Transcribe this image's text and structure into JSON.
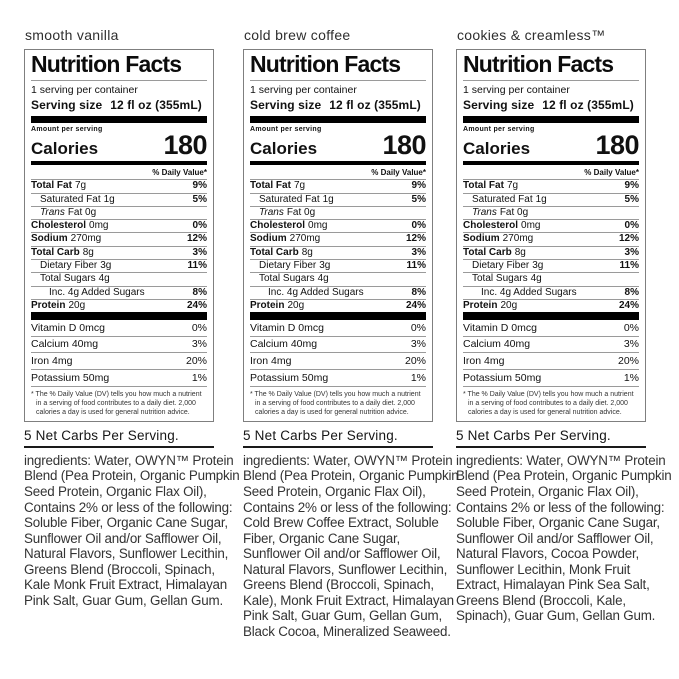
{
  "shared_label": {
    "title": "Nutrition Facts",
    "servings_per_container": "1 serving per container",
    "serving_size_label": "Serving size",
    "serving_size_value": "12 fl oz (355mL)",
    "amount_per_serving": "Amount per serving",
    "calories_label": "Calories",
    "calories_value": "180",
    "daily_value_header": "% Daily Value*",
    "rows": [
      {
        "name": "Total Fat",
        "amount": "7g",
        "dv": "9%",
        "bold": true,
        "indent": 0
      },
      {
        "name": "Saturated Fat",
        "amount": "1g",
        "dv": "5%",
        "bold": false,
        "indent": 1
      },
      {
        "name": "Trans",
        "amount": "Fat 0g",
        "dv": "",
        "bold": false,
        "italic": true,
        "indent": 1
      },
      {
        "name": "Cholesterol",
        "amount": "0mg",
        "dv": "0%",
        "bold": true,
        "indent": 0
      },
      {
        "name": "Sodium",
        "amount": "270mg",
        "dv": "12%",
        "bold": true,
        "indent": 0
      },
      {
        "name": "Total Carb",
        "amount": "8g",
        "dv": "3%",
        "bold": true,
        "indent": 0
      },
      {
        "name": "Dietary Fiber",
        "amount": "3g",
        "dv": "11%",
        "bold": false,
        "indent": 1
      },
      {
        "name": "Total Sugars",
        "amount": "4g",
        "dv": "",
        "bold": false,
        "indent": 1
      },
      {
        "name": "",
        "amount": "Inc. 4g Added Sugars",
        "dv": "8%",
        "bold": false,
        "indent": 2
      },
      {
        "name": "Protein",
        "amount": "20g",
        "dv": "24%",
        "bold": true,
        "indent": 0
      }
    ],
    "vitamins": [
      {
        "label": "Vitamin D 0mcg",
        "dv": "0%"
      },
      {
        "label": "Calcium 40mg",
        "dv": "3%"
      },
      {
        "label": "Iron 4mg",
        "dv": "20%"
      },
      {
        "label": "Potassium 50mg",
        "dv": "1%"
      }
    ],
    "footnote": "* The % Daily Value (DV) tells you how much a nutrient in a serving of food contributes to a daily diet. 2,000 calories a day is used for general nutrition advice.",
    "net_carbs_note": "5 Net Carbs Per Serving."
  },
  "flavors": [
    {
      "name": "smooth vanilla",
      "ingredients": "ingredients: Water, OWYN™ Protein Blend (Pea Protein, Organic Pumpkin Seed Protein, Organic Flax Oil), Contains 2% or less of the following: Soluble Fiber, Organic Cane Sugar, Sunflower Oil and/or Safflower Oil, Natural Flavors, Sunflower Lecithin, Greens Blend (Broccoli, Spinach, Kale Monk Fruit Extract, Himalayan Pink Salt, Guar Gum, Gellan Gum."
    },
    {
      "name": "cold brew coffee",
      "ingredients": "ingredients: Water, OWYN™ Protein Blend (Pea Protein, Organic Pumpkin Seed Protein, Organic Flax Oil), Contains 2% or less of the following: Cold Brew Coffee Extract, Soluble Fiber, Organic Cane Sugar, Sunflower Oil and/or Safflower Oil, Natural Flavors, Sunflower Lecithin, Greens Blend (Broccoli, Spinach, Kale), Monk Fruit Extract, Himalayan Pink Salt, Guar Gum, Gellan Gum, Black Cocoa, Mineralized Seaweed."
    },
    {
      "name": "cookies & creamless™",
      "ingredients": "ingredients: Water, OWYN™ Protein Blend (Pea Protein, Organic Pumpkin Seed Protein, Organic Flax Oil), Contains 2% or less of the following: Soluble Fiber, Organic Cane Sugar, Sunflower Oil and/or Safflower Oil, Natural Flavors, Cocoa Powder, Sunflower Lecithin, Monk Fruit Extract, Himalayan Pink Sea Salt, Greens Blend (Broccoli, Kale, Spinach), Guar Gum, Gellan Gum."
    }
  ],
  "colors": {
    "bar": "#000000",
    "hairline": "#9a9a9a",
    "box_border": "#7f7f7f",
    "text": "#111111",
    "ingredients_text": "#333333"
  }
}
